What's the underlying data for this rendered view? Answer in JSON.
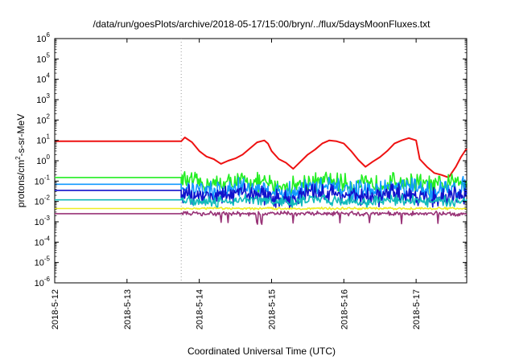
{
  "chart_data": {
    "type": "line",
    "title": "/data/run/goesPlots/archive/2018-05-17/15:00/bryn/../flux/5daysMoonFluxes.txt",
    "xlabel": "Coordinated Universal Time (UTC)",
    "ylabel": "protons/cm2-s-sr-MeV",
    "ylabel_parts": {
      "pre": "protons/cm",
      "sup": "2",
      "post": "-s-sr-MeV"
    },
    "yscale": "log",
    "ylim": [
      1e-06,
      1000000.0
    ],
    "xlim": [
      0,
      5.7
    ],
    "x_unit": "days since 2018-5-12 00:00 UTC",
    "x_ticks": [
      {
        "pos": 0,
        "label": "2018-5-12"
      },
      {
        "pos": 1,
        "label": "2018-5-13"
      },
      {
        "pos": 2,
        "label": "2018-5-14"
      },
      {
        "pos": 3,
        "label": "2018-5-15"
      },
      {
        "pos": 4,
        "label": "2018-5-16"
      },
      {
        "pos": 5,
        "label": "2018-5-17"
      }
    ],
    "y_ticks": [
      {
        "exp": "-6"
      },
      {
        "exp": "-5"
      },
      {
        "exp": "-4"
      },
      {
        "exp": "-3"
      },
      {
        "exp": "-2"
      },
      {
        "exp": "-1"
      },
      {
        "exp": "0"
      },
      {
        "exp": "1"
      },
      {
        "exp": "2"
      },
      {
        "exp": "3"
      },
      {
        "exp": "4"
      },
      {
        "exp": "5"
      },
      {
        "exp": "6"
      }
    ],
    "grid": "vertical dashed at data start",
    "data_start_x": 1.75,
    "series": [
      {
        "color": "#ee1111",
        "flat_value": 9,
        "points": [
          [
            1.75,
            9
          ],
          [
            1.8,
            14
          ],
          [
            1.9,
            8
          ],
          [
            2.0,
            3.0
          ],
          [
            2.1,
            1.6
          ],
          [
            2.2,
            1.2
          ],
          [
            2.3,
            0.7
          ],
          [
            2.4,
            1.0
          ],
          [
            2.5,
            1.3
          ],
          [
            2.6,
            2.0
          ],
          [
            2.7,
            4.0
          ],
          [
            2.8,
            8.0
          ],
          [
            2.9,
            10
          ],
          [
            2.95,
            7
          ],
          [
            3.0,
            3
          ],
          [
            3.1,
            1.2
          ],
          [
            3.2,
            0.8
          ],
          [
            3.3,
            0.4
          ],
          [
            3.4,
            0.9
          ],
          [
            3.5,
            2.0
          ],
          [
            3.6,
            3.5
          ],
          [
            3.7,
            7.0
          ],
          [
            3.8,
            10
          ],
          [
            3.9,
            9
          ],
          [
            4.0,
            7
          ],
          [
            4.1,
            3
          ],
          [
            4.2,
            1.1
          ],
          [
            4.3,
            0.5
          ],
          [
            4.4,
            0.9
          ],
          [
            4.5,
            1.5
          ],
          [
            4.6,
            3
          ],
          [
            4.7,
            7
          ],
          [
            4.8,
            10
          ],
          [
            4.9,
            13
          ],
          [
            5.0,
            10
          ],
          [
            5.05,
            1.2
          ],
          [
            5.15,
            0.5
          ],
          [
            5.25,
            0.25
          ],
          [
            5.35,
            0.2
          ],
          [
            5.45,
            0.15
          ],
          [
            5.55,
            0.5
          ],
          [
            5.62,
            1.5
          ],
          [
            5.7,
            4
          ]
        ]
      },
      {
        "color": "#22ee22",
        "flat_value": 0.15,
        "points": [
          [
            1.75,
            0.12
          ],
          [
            2.0,
            0.08
          ],
          [
            2.3,
            0.07
          ],
          [
            2.6,
            0.1
          ],
          [
            2.9,
            0.08
          ],
          [
            3.2,
            0.05
          ],
          [
            3.5,
            0.09
          ],
          [
            3.8,
            0.1
          ],
          [
            4.1,
            0.07
          ],
          [
            4.4,
            0.06
          ],
          [
            4.7,
            0.09
          ],
          [
            5.0,
            0.08
          ],
          [
            5.3,
            0.06
          ],
          [
            5.7,
            0.1
          ]
        ],
        "jitter": 0.5
      },
      {
        "color": "#1199ff",
        "flat_value": 0.07,
        "points": [
          [
            1.75,
            0.05
          ],
          [
            2.0,
            0.04
          ],
          [
            2.3,
            0.03
          ],
          [
            2.6,
            0.05
          ],
          [
            2.9,
            0.04
          ],
          [
            3.2,
            0.025
          ],
          [
            3.5,
            0.05
          ],
          [
            3.8,
            0.05
          ],
          [
            4.1,
            0.035
          ],
          [
            4.4,
            0.03
          ],
          [
            4.7,
            0.05
          ],
          [
            5.0,
            0.04
          ],
          [
            5.3,
            0.03
          ],
          [
            5.7,
            0.05
          ]
        ],
        "jitter": 0.55
      },
      {
        "color": "#1111cc",
        "flat_value": 0.035,
        "points": [
          [
            1.75,
            0.025
          ],
          [
            2.0,
            0.02
          ],
          [
            2.3,
            0.018
          ],
          [
            2.6,
            0.025
          ],
          [
            2.9,
            0.02
          ],
          [
            3.2,
            0.012
          ],
          [
            3.5,
            0.025
          ],
          [
            3.8,
            0.025
          ],
          [
            4.1,
            0.018
          ],
          [
            4.4,
            0.015
          ],
          [
            4.7,
            0.025
          ],
          [
            5.0,
            0.02
          ],
          [
            5.3,
            0.015
          ],
          [
            5.7,
            0.02
          ]
        ],
        "jitter": 0.5
      },
      {
        "color": "#11bbbb",
        "flat_value": 0.012,
        "points": [
          [
            1.75,
            0.012
          ],
          [
            2.0,
            0.011
          ],
          [
            2.3,
            0.01
          ],
          [
            2.6,
            0.012
          ],
          [
            2.9,
            0.011
          ],
          [
            3.2,
            0.008
          ],
          [
            3.5,
            0.012
          ],
          [
            3.8,
            0.012
          ],
          [
            4.1,
            0.01
          ],
          [
            4.4,
            0.009
          ],
          [
            4.7,
            0.012
          ],
          [
            5.0,
            0.011
          ],
          [
            5.3,
            0.009
          ],
          [
            5.7,
            0.012
          ]
        ],
        "jitter": 0.3
      },
      {
        "color": "#eeee22",
        "flat_value": 0.0045,
        "points": [
          [
            1.75,
            0.0045
          ],
          [
            5.7,
            0.0045
          ]
        ],
        "jitter": 0.06
      },
      {
        "color": "#993377",
        "flat_value": 0.0025,
        "points": [
          [
            1.75,
            0.0025
          ],
          [
            5.7,
            0.0025
          ]
        ],
        "jitter": 0.12,
        "dips": [
          2.3,
          2.4,
          2.8,
          2.86,
          3.3,
          3.95,
          4.35,
          4.8,
          5.3
        ]
      }
    ]
  }
}
